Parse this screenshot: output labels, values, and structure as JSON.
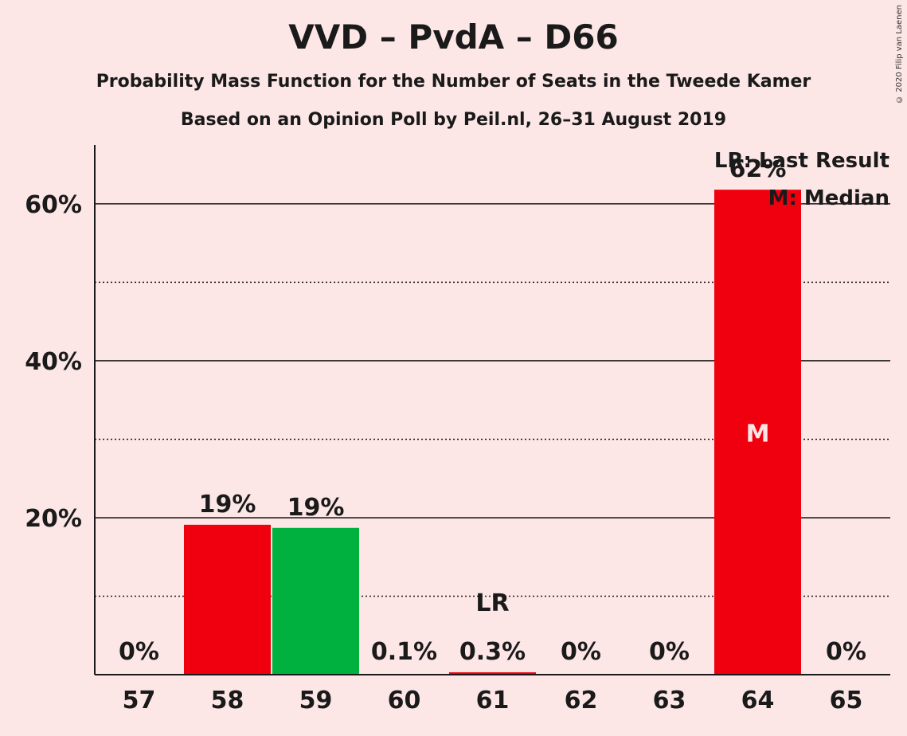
{
  "header": {
    "title": "VVD – PvdA – D66",
    "subtitle1": "Probability Mass Function for the Number of Seats in the Tweede Kamer",
    "subtitle2": "Based on an Opinion Poll by Peil.nl, 26–31 August 2019",
    "copyright": "© 2020 Filip van Laenen"
  },
  "legend": {
    "lr": "LR: Last Result",
    "median": "M: Median"
  },
  "chart_data": {
    "type": "bar",
    "categories": [
      "57",
      "58",
      "59",
      "60",
      "61",
      "62",
      "63",
      "64",
      "65"
    ],
    "values": [
      0,
      19.1,
      18.7,
      0.1,
      0.3,
      0,
      0,
      61.8,
      0
    ],
    "data_labels": [
      "0%",
      "19%",
      "19%",
      "0.1%",
      "0.3%",
      "0%",
      "0%",
      "62%",
      "0%"
    ],
    "colors": [
      "#f0000e",
      "#f0000e",
      "#00b140",
      "#f0000e",
      "#f0000e",
      "#f0000e",
      "#f0000e",
      "#f0000e",
      "#f0000e"
    ],
    "ylim": [
      0,
      67.5
    ],
    "yticks": [
      20,
      40,
      60
    ],
    "ytick_labels": [
      "20%",
      "40%",
      "60%"
    ],
    "minor_gridlines": [
      10,
      30,
      50
    ],
    "last_result_index": 4,
    "last_result_label": "LR",
    "median_index": 7,
    "median_label": "M"
  }
}
